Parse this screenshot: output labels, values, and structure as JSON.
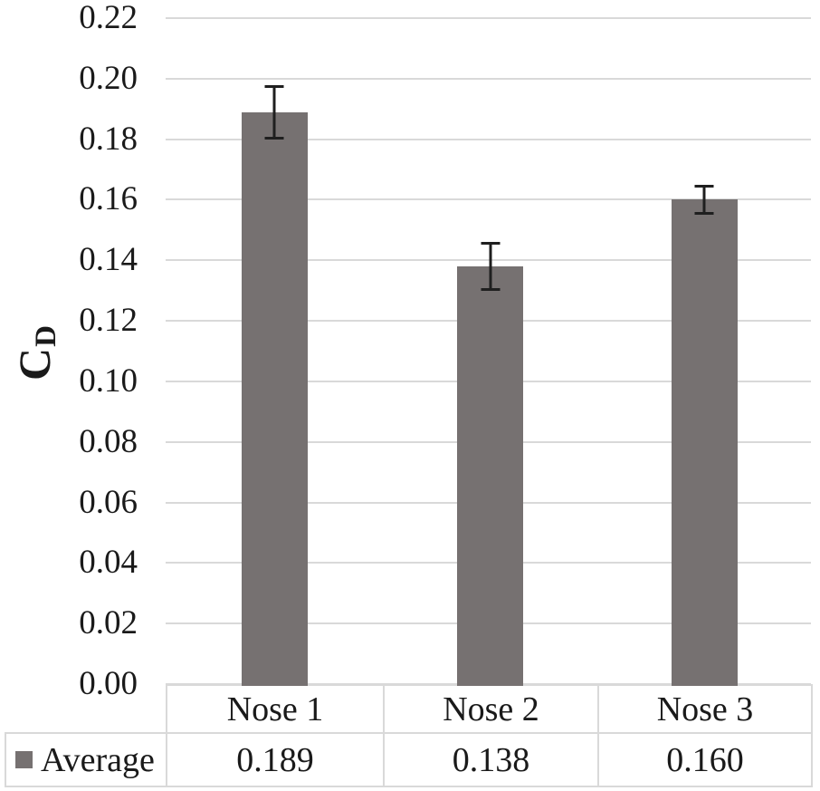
{
  "chart_data": {
    "type": "bar",
    "title": "",
    "xlabel": "",
    "ylabel_main": "C",
    "ylabel_sub": "D",
    "categories": [
      "Nose 1",
      "Nose 2",
      "Nose 3"
    ],
    "series": [
      {
        "name": "Average",
        "values": [
          0.189,
          0.138,
          0.16
        ],
        "error_bars": [
          0.009,
          0.008,
          0.005
        ]
      }
    ],
    "table_values": [
      "0.189",
      "0.138",
      "0.160"
    ],
    "ylim": [
      0.0,
      0.22
    ],
    "ytick_step": 0.02,
    "ytick_labels": [
      "0.22",
      "0.20",
      "0.18",
      "0.16",
      "0.14",
      "0.12",
      "0.10",
      "0.08",
      "0.06",
      "0.04",
      "0.02",
      "0.00"
    ],
    "grid": true,
    "legend_position": "bottom-table",
    "colors": {
      "bar": "#767171",
      "gridline": "#d9d9d9",
      "error_bar": "#1f1f1f",
      "table_border": "#d9d9d9",
      "text": "#1a1a1a"
    }
  }
}
